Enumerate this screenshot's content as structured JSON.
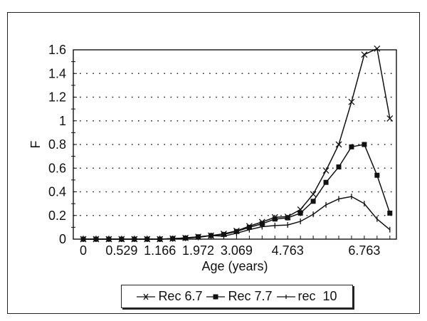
{
  "chart_data": {
    "type": "line",
    "title": "",
    "xlabel": "Age (years)",
    "ylabel": "F",
    "ylim": [
      0,
      1.6
    ],
    "yticks": [
      "0",
      "0.2",
      "0.4",
      "0.6",
      "0.8",
      "1",
      "1.2",
      "1.4",
      "1.6"
    ],
    "x_tick_labels": [
      {
        "index": 0,
        "label": "0"
      },
      {
        "index": 3,
        "label": "0.529"
      },
      {
        "index": 6,
        "label": "1.166"
      },
      {
        "index": 9,
        "label": "1.972"
      },
      {
        "index": 12,
        "label": "3.069"
      },
      {
        "index": 16,
        "label": "4.763"
      },
      {
        "index": 22,
        "label": "6.763"
      }
    ],
    "n_points": 25,
    "grid": "horizontal dotted",
    "legend_position": "bottom",
    "series": [
      {
        "name": "Rec 6.7",
        "marker": "x",
        "values": [
          0,
          0,
          0,
          0,
          0,
          0,
          0,
          0.005,
          0.01,
          0.02,
          0.03,
          0.045,
          0.07,
          0.11,
          0.145,
          0.185,
          0.19,
          0.25,
          0.38,
          0.58,
          0.8,
          1.16,
          1.56,
          1.61,
          1.02
        ]
      },
      {
        "name": "Rec 7.7",
        "marker": "square",
        "values": [
          0,
          0,
          0,
          0,
          0,
          0,
          0,
          0.005,
          0.01,
          0.02,
          0.03,
          0.04,
          0.065,
          0.1,
          0.13,
          0.17,
          0.18,
          0.22,
          0.32,
          0.48,
          0.61,
          0.78,
          0.8,
          0.54,
          0.22
        ]
      },
      {
        "name": "rec  10",
        "marker": "plus",
        "values": [
          0,
          0,
          0,
          0,
          0,
          0,
          0,
          0.003,
          0.008,
          0.015,
          0.03,
          0.025,
          0.05,
          0.08,
          0.105,
          0.115,
          0.12,
          0.15,
          0.21,
          0.29,
          0.34,
          0.36,
          0.3,
          0.17,
          0.08
        ]
      }
    ]
  },
  "legend": {
    "items": [
      "Rec 6.7",
      "Rec 7.7",
      "rec  10"
    ]
  },
  "colors": {
    "line": "#111111",
    "grid": "#222222"
  }
}
